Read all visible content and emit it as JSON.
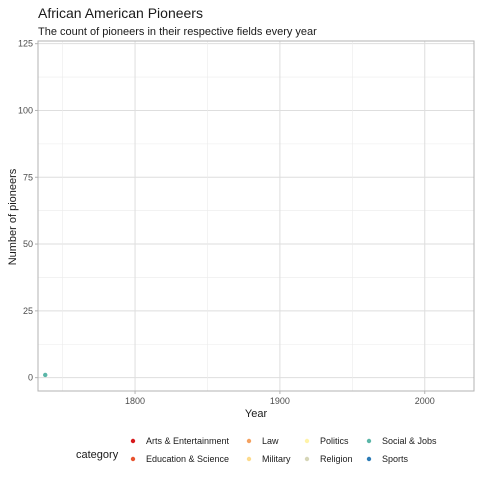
{
  "chart_data": {
    "type": "scatter",
    "title": "African American Pioneers",
    "subtitle": "The count of pioneers in their respective fields every year",
    "xlabel": "Year",
    "ylabel": "Number of pioneers",
    "xlim": [
      1733,
      2034
    ],
    "ylim": [
      -5,
      126
    ],
    "xticks": [
      1800,
      1900,
      2000
    ],
    "yticks": [
      0,
      25,
      50,
      75,
      100,
      125
    ],
    "grid": true,
    "legend_title": "category",
    "legend_position": "bottom",
    "series": [
      {
        "name": "Arts & Entertainment",
        "color": "#D7191C",
        "points": []
      },
      {
        "name": "Education & Science",
        "color": "#E8532F",
        "points": []
      },
      {
        "name": "Law",
        "color": "#F4A160",
        "points": []
      },
      {
        "name": "Military",
        "color": "#FDDB8C",
        "points": []
      },
      {
        "name": "Politics",
        "color": "#FFF3A8",
        "points": []
      },
      {
        "name": "Religion",
        "color": "#D6D6B8",
        "points": []
      },
      {
        "name": "Social & Jobs",
        "color": "#5BB6A8",
        "points": [
          {
            "x": 1738,
            "y": 1
          }
        ]
      },
      {
        "name": "Sports",
        "color": "#2C7BB6",
        "points": []
      }
    ]
  }
}
